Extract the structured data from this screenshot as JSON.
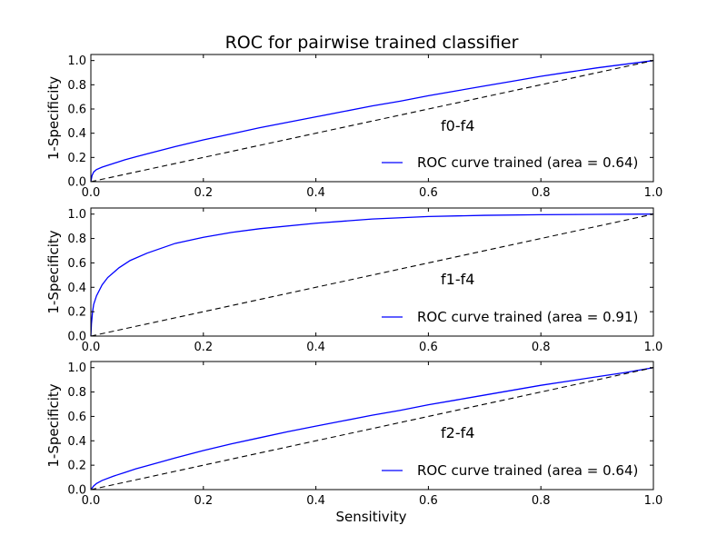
{
  "figure": {
    "title": "ROC for pairwise trained classifier"
  },
  "chart_data": [
    {
      "type": "line",
      "panel": "f0-f4",
      "annotation": "f0-f4",
      "xlabel": "",
      "ylabel": "1-Specificity",
      "xlim": [
        0,
        1
      ],
      "ylim": [
        0,
        1.05
      ],
      "xticks": [
        "0.0",
        "0.2",
        "0.4",
        "0.6",
        "0.8",
        "1.0"
      ],
      "yticks": [
        "0.0",
        "0.2",
        "0.4",
        "0.6",
        "0.8",
        "1.0"
      ],
      "legend": {
        "entry": "ROC curve trained (area = 0.64)",
        "placement": "lower-right"
      },
      "series": [
        {
          "name": "ROC curve trained (area = 0.64)",
          "color": "#0000ff",
          "x": [
            0,
            0.002,
            0.005,
            0.01,
            0.02,
            0.04,
            0.06,
            0.08,
            0.1,
            0.15,
            0.2,
            0.25,
            0.3,
            0.35,
            0.4,
            0.45,
            0.5,
            0.55,
            0.6,
            0.65,
            0.7,
            0.75,
            0.8,
            0.85,
            0.9,
            0.95,
            1.0
          ],
          "y": [
            0,
            0.05,
            0.08,
            0.1,
            0.12,
            0.15,
            0.18,
            0.205,
            0.23,
            0.29,
            0.345,
            0.395,
            0.445,
            0.49,
            0.535,
            0.58,
            0.625,
            0.665,
            0.71,
            0.75,
            0.79,
            0.83,
            0.87,
            0.905,
            0.94,
            0.97,
            1.0
          ]
        },
        {
          "name": "",
          "color": "#000000",
          "dashed": true,
          "x": [
            0,
            1
          ],
          "y": [
            0,
            1
          ]
        }
      ]
    },
    {
      "type": "line",
      "panel": "f1-f4",
      "annotation": "f1-f4",
      "xlabel": "",
      "ylabel": "1-Specificity",
      "xlim": [
        0,
        1
      ],
      "ylim": [
        0,
        1.05
      ],
      "xticks": [
        "0.0",
        "0.2",
        "0.4",
        "0.6",
        "0.8",
        "1.0"
      ],
      "yticks": [
        "0.0",
        "0.2",
        "0.4",
        "0.6",
        "0.8",
        "1.0"
      ],
      "legend": {
        "entry": "ROC curve trained (area = 0.91)",
        "placement": "lower-right"
      },
      "series": [
        {
          "name": "ROC curve trained (area = 0.91)",
          "color": "#0000ff",
          "x": [
            0,
            0.001,
            0.003,
            0.005,
            0.01,
            0.02,
            0.03,
            0.05,
            0.07,
            0.1,
            0.15,
            0.2,
            0.25,
            0.3,
            0.4,
            0.5,
            0.6,
            0.7,
            0.8,
            0.9,
            1.0
          ],
          "y": [
            0,
            0.1,
            0.2,
            0.26,
            0.33,
            0.42,
            0.48,
            0.56,
            0.62,
            0.68,
            0.76,
            0.81,
            0.85,
            0.88,
            0.925,
            0.96,
            0.98,
            0.99,
            0.995,
            0.998,
            1.0
          ]
        },
        {
          "name": "",
          "color": "#000000",
          "dashed": true,
          "x": [
            0,
            1
          ],
          "y": [
            0,
            1
          ]
        }
      ]
    },
    {
      "type": "line",
      "panel": "f2-f4",
      "annotation": "f2-f4",
      "xlabel": "Sensitivity",
      "ylabel": "1-Specificity",
      "xlim": [
        0,
        1
      ],
      "ylim": [
        0,
        1.05
      ],
      "xticks": [
        "0.0",
        "0.2",
        "0.4",
        "0.6",
        "0.8",
        "1.0"
      ],
      "yticks": [
        "0.0",
        "0.2",
        "0.4",
        "0.6",
        "0.8",
        "1.0"
      ],
      "legend": {
        "entry": "ROC curve trained (area = 0.64)",
        "placement": "lower-right"
      },
      "series": [
        {
          "name": "ROC curve trained (area = 0.64)",
          "color": "#0000ff",
          "x": [
            0,
            0.005,
            0.01,
            0.02,
            0.04,
            0.06,
            0.08,
            0.1,
            0.15,
            0.2,
            0.25,
            0.3,
            0.35,
            0.4,
            0.45,
            0.5,
            0.55,
            0.6,
            0.65,
            0.7,
            0.75,
            0.8,
            0.85,
            0.9,
            0.95,
            1.0
          ],
          "y": [
            0,
            0.03,
            0.05,
            0.075,
            0.11,
            0.14,
            0.17,
            0.195,
            0.26,
            0.32,
            0.375,
            0.425,
            0.475,
            0.52,
            0.565,
            0.61,
            0.65,
            0.695,
            0.735,
            0.775,
            0.815,
            0.855,
            0.89,
            0.925,
            0.96,
            1.0
          ]
        },
        {
          "name": "",
          "color": "#000000",
          "dashed": true,
          "x": [
            0,
            1
          ],
          "y": [
            0,
            1
          ]
        }
      ]
    }
  ]
}
